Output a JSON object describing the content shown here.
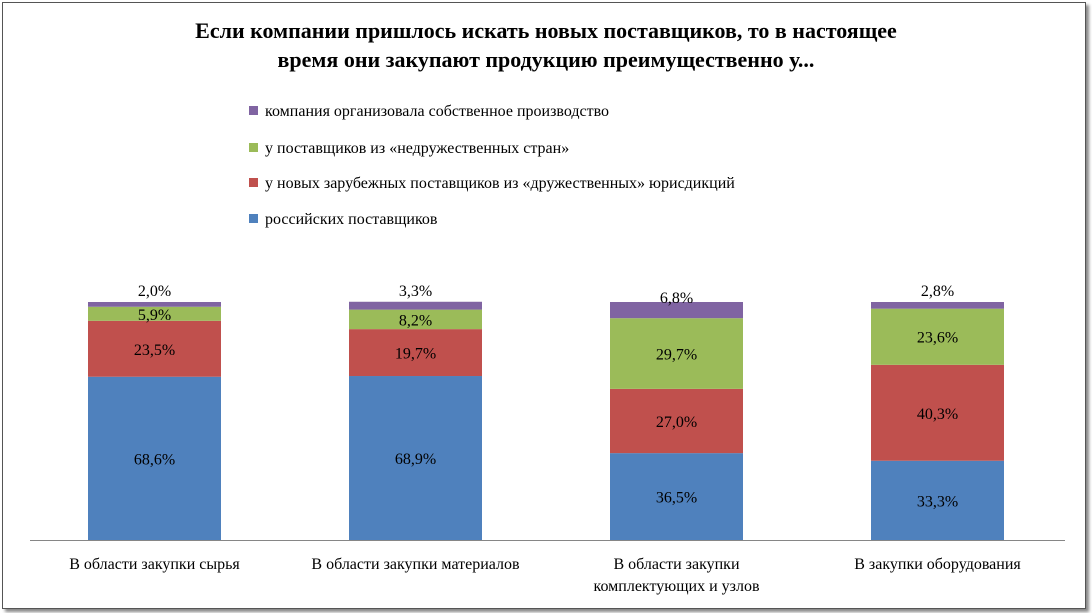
{
  "chart_data": {
    "type": "bar",
    "stacked": true,
    "title_lines": [
      "Если компании пришлось искать новых поставщиков, то в настоящее",
      "время они закупают продукцию преимущественно у..."
    ],
    "categories": [
      [
        "В области закупки сырья"
      ],
      [
        "В области закупки материалов"
      ],
      [
        "В области закупки",
        "комплектующих и узлов"
      ],
      [
        "В закупки оборудования"
      ]
    ],
    "series": [
      {
        "name": "российских поставщиков",
        "color": "#4F81BD",
        "values": [
          68.6,
          68.9,
          36.5,
          33.3
        ],
        "labels": [
          "68,6%",
          "68,9%",
          "36,5%",
          "33,3%"
        ]
      },
      {
        "name": "у новых зарубежных поставщиков из «дружественных» юрисдикций",
        "color": "#C0504D",
        "values": [
          23.5,
          19.7,
          27.0,
          40.3
        ],
        "labels": [
          "23,5%",
          "19,7%",
          "27,0%",
          "40,3%"
        ]
      },
      {
        "name": "у поставщиков из «недружественных стран»",
        "color": "#9BBB59",
        "values": [
          5.9,
          8.2,
          29.7,
          23.6
        ],
        "labels": [
          "5,9%",
          "8,2%",
          "29,7%",
          "23,6%"
        ]
      },
      {
        "name": "компания организовала собственное производство",
        "color": "#8064A2",
        "values": [
          2.0,
          3.3,
          6.8,
          2.8
        ],
        "labels": [
          "2,0%",
          "3,3%",
          "6,8%",
          "2,8%"
        ]
      }
    ],
    "ylim": [
      0,
      100
    ],
    "legend_position": "top",
    "grid": false,
    "xlabel": "",
    "ylabel": ""
  }
}
